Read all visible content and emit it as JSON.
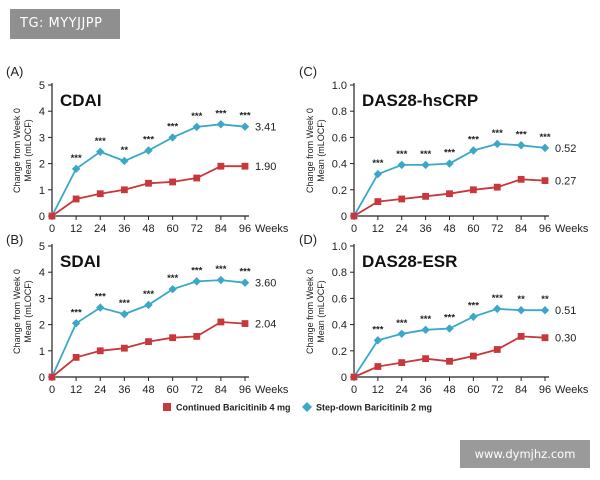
{
  "header": {
    "badge_text": "TG: MYYJJPP"
  },
  "footer": {
    "watermark_text": "www.dymjhz.com"
  },
  "legend": {
    "items": [
      {
        "label": "Continued Baricitinib 4 mg",
        "color": "#c8373b",
        "marker": "square"
      },
      {
        "label": "Step-down Baricitinib 2 mg",
        "color": "#3aa8c6",
        "marker": "diamond"
      }
    ]
  },
  "colors": {
    "continued": "#c8373b",
    "stepdown": "#3aa8c6",
    "axis": "#222222"
  },
  "chart_data": [
    {
      "panel": "(A)",
      "title": "CDAI",
      "type": "line",
      "xlabel": "Weeks",
      "ylabel": [
        "Change from Week 0",
        "Mean (mLOCF)"
      ],
      "x": [
        0,
        12,
        24,
        36,
        48,
        60,
        72,
        84,
        96
      ],
      "xticks": [
        "0",
        "12",
        "24",
        "36",
        "48",
        "60",
        "72",
        "84",
        "96"
      ],
      "ylim": [
        0,
        5
      ],
      "yticks": [
        "0",
        "1",
        "2",
        "3",
        "4",
        "5"
      ],
      "series": [
        {
          "name": "Step-down Baricitinib 2 mg",
          "key": "stepdown",
          "values": [
            0,
            1.8,
            2.45,
            2.1,
            2.5,
            3.0,
            3.4,
            3.5,
            3.41
          ],
          "end_label": "3.41"
        },
        {
          "name": "Continued Baricitinib 4 mg",
          "key": "continued",
          "values": [
            0,
            0.65,
            0.85,
            1.0,
            1.25,
            1.3,
            1.45,
            1.9,
            1.9
          ],
          "end_label": "1.90"
        }
      ],
      "significance": [
        "",
        "***",
        "***",
        "**",
        "***",
        "***",
        "***",
        "***",
        "***"
      ]
    },
    {
      "panel": "(B)",
      "title": "SDAI",
      "type": "line",
      "xlabel": "Weeks",
      "ylabel": [
        "Change from Week 0",
        "Mean (mLOCF)"
      ],
      "x": [
        0,
        12,
        24,
        36,
        48,
        60,
        72,
        84,
        96
      ],
      "xticks": [
        "0",
        "12",
        "24",
        "36",
        "48",
        "60",
        "72",
        "84",
        "96"
      ],
      "ylim": [
        0,
        5
      ],
      "yticks": [
        "0",
        "1",
        "2",
        "3",
        "4",
        "5"
      ],
      "series": [
        {
          "name": "Step-down Baricitinib 2 mg",
          "key": "stepdown",
          "values": [
            0,
            2.05,
            2.65,
            2.4,
            2.75,
            3.35,
            3.65,
            3.7,
            3.6
          ],
          "end_label": "3.60"
        },
        {
          "name": "Continued Baricitinib 4 mg",
          "key": "continued",
          "values": [
            0,
            0.75,
            1.0,
            1.1,
            1.35,
            1.5,
            1.55,
            2.1,
            2.04
          ],
          "end_label": "2.04"
        }
      ],
      "significance": [
        "",
        "***",
        "***",
        "***",
        "***",
        "***",
        "***",
        "***",
        "***"
      ]
    },
    {
      "panel": "(C)",
      "title": "DAS28-hsCRP",
      "type": "line",
      "xlabel": "Weeks",
      "ylabel": [
        "Change from Week 0",
        "Mean (mLOCF)"
      ],
      "x": [
        0,
        12,
        24,
        36,
        48,
        60,
        72,
        84,
        96
      ],
      "xticks": [
        "0",
        "12",
        "24",
        "36",
        "48",
        "60",
        "72",
        "84",
        "96"
      ],
      "ylim": [
        0,
        1.0
      ],
      "yticks": [
        "0",
        "0.2",
        "0.4",
        "0.6",
        "0.8",
        "1.0"
      ],
      "series": [
        {
          "name": "Step-down Baricitinib 2 mg",
          "key": "stepdown",
          "values": [
            0,
            0.32,
            0.39,
            0.39,
            0.4,
            0.5,
            0.55,
            0.54,
            0.52
          ],
          "end_label": "0.52"
        },
        {
          "name": "Continued Baricitinib 4 mg",
          "key": "continued",
          "values": [
            0,
            0.11,
            0.13,
            0.15,
            0.17,
            0.2,
            0.22,
            0.28,
            0.27
          ],
          "end_label": "0.27"
        }
      ],
      "significance": [
        "",
        "***",
        "***",
        "***",
        "***",
        "***",
        "***",
        "***",
        "***"
      ]
    },
    {
      "panel": "(D)",
      "title": "DAS28-ESR",
      "type": "line",
      "xlabel": "Weeks",
      "ylabel": [
        "Change from Week 0",
        "Mean (mLOCF)"
      ],
      "x": [
        0,
        12,
        24,
        36,
        48,
        60,
        72,
        84,
        96
      ],
      "xticks": [
        "0",
        "12",
        "24",
        "36",
        "48",
        "60",
        "72",
        "84",
        "96"
      ],
      "ylim": [
        0,
        1.0
      ],
      "yticks": [
        "0",
        "0.2",
        "0.4",
        "0.6",
        "0.8",
        "1.0"
      ],
      "series": [
        {
          "name": "Step-down Baricitinib 2 mg",
          "key": "stepdown",
          "values": [
            0,
            0.28,
            0.33,
            0.36,
            0.37,
            0.46,
            0.52,
            0.51,
            0.51
          ],
          "end_label": "0.51"
        },
        {
          "name": "Continued Baricitinib 4 mg",
          "key": "continued",
          "values": [
            0,
            0.08,
            0.11,
            0.14,
            0.12,
            0.16,
            0.21,
            0.31,
            0.3
          ],
          "end_label": "0.30"
        }
      ],
      "significance": [
        "",
        "***",
        "***",
        "***",
        "***",
        "***",
        "***",
        "**",
        "**"
      ]
    }
  ]
}
